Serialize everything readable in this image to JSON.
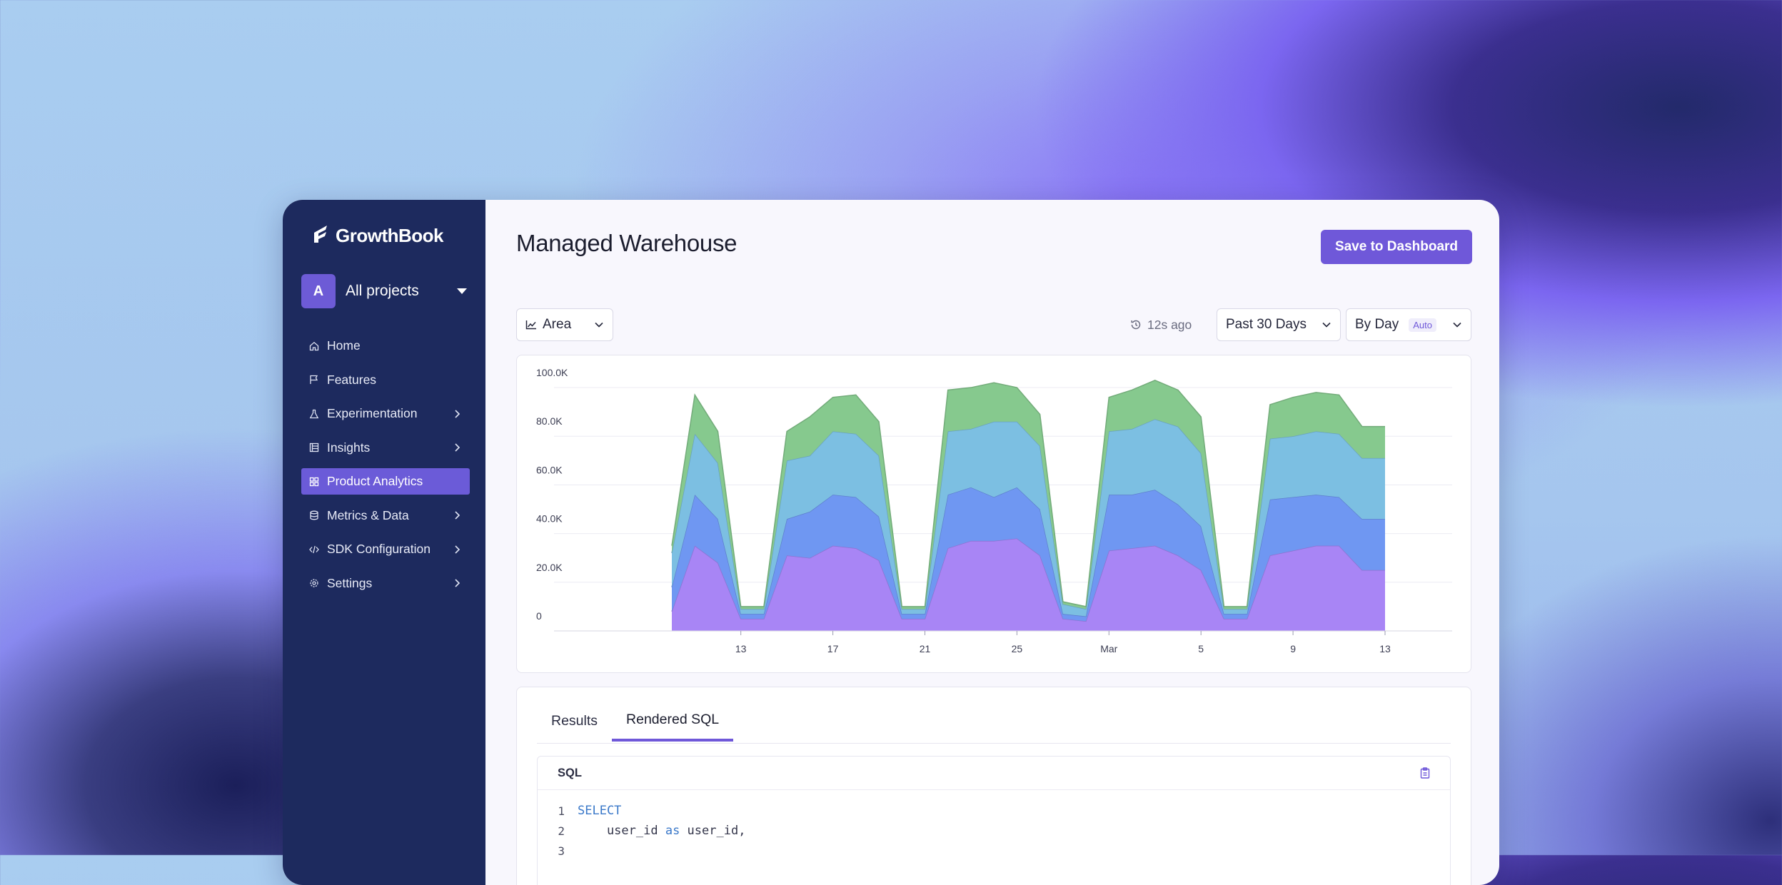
{
  "app": {
    "logo_text": "GrowthBook"
  },
  "project": {
    "avatar_letter": "A",
    "name": "All projects"
  },
  "sidebar": {
    "items": [
      {
        "label": "Home",
        "icon": "home-icon",
        "has_chevron": false,
        "active": false
      },
      {
        "label": "Features",
        "icon": "flag-icon",
        "has_chevron": false,
        "active": false
      },
      {
        "label": "Experimentation",
        "icon": "flask-icon",
        "has_chevron": true,
        "active": false
      },
      {
        "label": "Insights",
        "icon": "report-icon",
        "has_chevron": true,
        "active": false
      },
      {
        "label": "Product Analytics",
        "icon": "grid-icon",
        "has_chevron": false,
        "active": true
      },
      {
        "label": "Metrics & Data",
        "icon": "database-icon",
        "has_chevron": true,
        "active": false
      },
      {
        "label": "SDK Configuration",
        "icon": "code-icon",
        "has_chevron": true,
        "active": false
      },
      {
        "label": "Settings",
        "icon": "gear-icon",
        "has_chevron": true,
        "active": false
      }
    ]
  },
  "header": {
    "title": "Managed Warehouse",
    "save_label": "Save to Dashboard"
  },
  "controls": {
    "chart_type": "Area",
    "last_refresh": "12s ago",
    "date_range": "Past 30 Days",
    "granularity": "By Day",
    "granularity_badge": "Auto"
  },
  "colors": {
    "accent": "#6f58d9",
    "sidebar": "#1d2a5e"
  },
  "chart_data": {
    "type": "area",
    "stacked": true,
    "x_ticks": [
      "13",
      "17",
      "21",
      "25",
      "Mar",
      "5",
      "9",
      "13"
    ],
    "y_ticks": [
      "0",
      "20.0K",
      "40.0K",
      "60.0K",
      "80.0K",
      "100.0K"
    ],
    "ylim": [
      0,
      105000
    ],
    "x": [
      "Feb 10",
      "Feb 11",
      "Feb 12",
      "Feb 13",
      "Feb 14",
      "Feb 15",
      "Feb 16",
      "Feb 17",
      "Feb 18",
      "Feb 19",
      "Feb 20",
      "Feb 21",
      "Feb 22",
      "Feb 23",
      "Feb 24",
      "Feb 25",
      "Feb 26",
      "Feb 27",
      "Feb 28",
      "Mar 1",
      "Mar 2",
      "Mar 3",
      "Mar 4",
      "Mar 5",
      "Mar 6",
      "Mar 7",
      "Mar 8",
      "Mar 9",
      "Mar 10",
      "Mar 11",
      "Mar 12",
      "Mar 13"
    ],
    "series": [
      {
        "color": "#a885f5",
        "values": [
          8000,
          35000,
          28000,
          5000,
          5000,
          31000,
          30000,
          35000,
          34000,
          29000,
          5000,
          5000,
          34000,
          37000,
          37000,
          38000,
          31000,
          5000,
          4000,
          33000,
          34000,
          35000,
          31000,
          25000,
          5000,
          5000,
          31000,
          33000,
          35000,
          35000,
          25000,
          25000
        ]
      },
      {
        "color": "#6f97f2",
        "values": [
          10000,
          21000,
          18000,
          2000,
          2000,
          15000,
          19000,
          21000,
          21000,
          18000,
          2000,
          2000,
          22000,
          22000,
          18000,
          21000,
          19000,
          2000,
          2000,
          23000,
          22000,
          23000,
          21000,
          18000,
          2000,
          2000,
          23000,
          22000,
          21000,
          20000,
          21000,
          21000
        ]
      },
      {
        "color": "#7cbfe2",
        "values": [
          14000,
          25000,
          23000,
          2000,
          2000,
          24000,
          23000,
          26000,
          26000,
          25000,
          2000,
          2000,
          26000,
          24000,
          31000,
          27000,
          26000,
          4000,
          3000,
          26000,
          27000,
          29000,
          32000,
          30000,
          2000,
          2000,
          25000,
          25000,
          26000,
          26000,
          25000,
          25000
        ]
      },
      {
        "color": "#86c98e",
        "values": [
          3000,
          16000,
          13000,
          1000,
          1000,
          12000,
          16000,
          14000,
          16000,
          14000,
          1000,
          1000,
          17000,
          17000,
          16000,
          14000,
          13000,
          1000,
          1000,
          14000,
          16000,
          16000,
          15000,
          15000,
          1000,
          1000,
          14000,
          16000,
          16000,
          16000,
          13000,
          13000
        ]
      }
    ]
  },
  "results": {
    "tabs": [
      "Results",
      "Rendered SQL"
    ],
    "active_tab": "Rendered SQL",
    "sql_header": "SQL",
    "code_lines": [
      {
        "n": "1",
        "kw": "SELECT",
        "text": ""
      },
      {
        "n": "2",
        "kw": "",
        "text": "    user_id ",
        "kw2": "as",
        "text2": " user_id,"
      },
      {
        "n": "3",
        "kw": "",
        "text": ""
      }
    ]
  }
}
